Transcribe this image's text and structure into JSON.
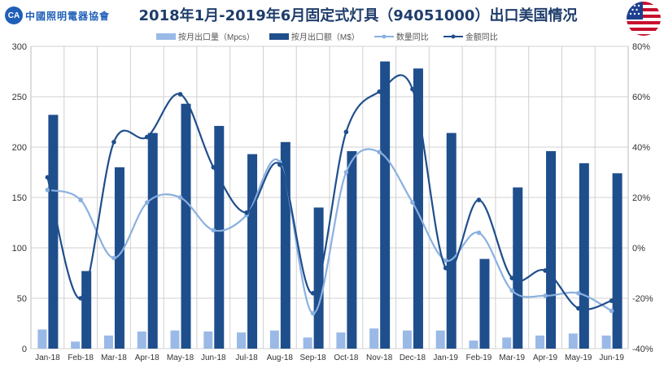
{
  "header": {
    "logo_text": "中國照明電器協會",
    "title": "2018年1月-2019年6月固定式灯具（94051000）出口美国情况",
    "flag_icon": "us-flag-icon"
  },
  "colors": {
    "qty_bar": "#9ab9e6",
    "amt_bar": "#1f4e8c",
    "qty_line": "#8ab0e0",
    "amt_line": "#1f4e8c",
    "grid": "#d0d0d0",
    "axis_text": "#333333"
  },
  "chart_data": {
    "type": "bar",
    "title": "2018年1月-2019年6月固定式灯具（94051000）出口美国情况",
    "categories": [
      "Jan-18",
      "Feb-18",
      "Mar-18",
      "Apr-18",
      "May-18",
      "Jun-18",
      "Jul-18",
      "Aug-18",
      "Sep-18",
      "Oct-18",
      "Nov-18",
      "Dec-18",
      "Jan-19",
      "Feb-19",
      "Mar-19",
      "Apr-19",
      "May-19",
      "Jun-19"
    ],
    "series": [
      {
        "name": "按月出口量（Mpcs）",
        "type": "bar",
        "axis": "left",
        "values": [
          19,
          7,
          13,
          17,
          18,
          17,
          16,
          18,
          11,
          16,
          20,
          18,
          18,
          8,
          11,
          13,
          15,
          13
        ]
      },
      {
        "name": "按月出口额（M$）",
        "type": "bar",
        "axis": "left",
        "values": [
          232,
          77,
          180,
          214,
          243,
          221,
          193,
          205,
          140,
          196,
          285,
          278,
          214,
          89,
          160,
          196,
          184,
          174
        ]
      },
      {
        "name": "数量同比",
        "type": "line",
        "axis": "right",
        "values": [
          23,
          19,
          -4,
          18,
          20,
          7,
          13,
          34,
          -26,
          30,
          38,
          18,
          -5,
          6,
          -17,
          -19,
          -18,
          -25
        ]
      },
      {
        "name": "金额同比",
        "type": "line",
        "axis": "right",
        "values": [
          28,
          -20,
          42,
          44,
          61,
          32,
          14,
          33,
          -18,
          46,
          62,
          63,
          -8,
          19,
          -12,
          -9,
          -24,
          -21
        ]
      }
    ],
    "y_left": {
      "min": 0,
      "max": 300,
      "ticks": [
        "0",
        "50",
        "100",
        "150",
        "200",
        "250",
        "300"
      ]
    },
    "y_right": {
      "min": -40,
      "max": 80,
      "ticks": [
        "-40%",
        "-20%",
        "0%",
        "20%",
        "40%",
        "60%",
        "80%"
      ]
    },
    "grid": true,
    "legend_position": "top"
  }
}
